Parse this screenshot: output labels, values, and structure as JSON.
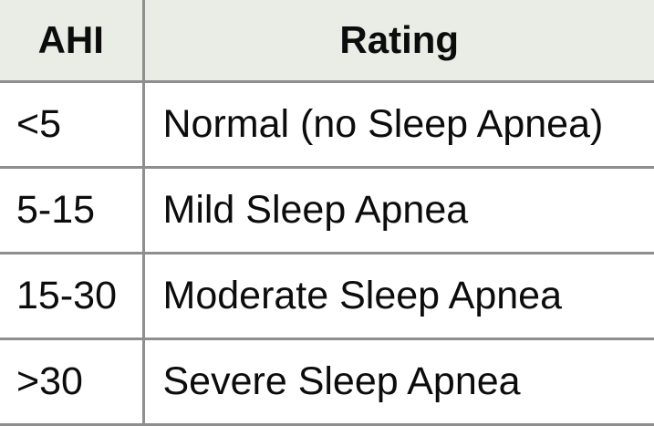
{
  "table": {
    "headers": {
      "ahi": "AHI",
      "rating": "Rating"
    },
    "rows": [
      {
        "ahi": "<5",
        "rating": "Normal (no Sleep Apnea)"
      },
      {
        "ahi": "5-15",
        "rating": "Mild Sleep Apnea"
      },
      {
        "ahi": "15-30",
        "rating": "Moderate Sleep Apnea"
      },
      {
        "ahi": ">30",
        "rating": "Severe Sleep Apnea"
      }
    ]
  },
  "colors": {
    "header_background": "#e9ede5",
    "border": "#8e8e8e",
    "text": "#0c0c0c"
  }
}
